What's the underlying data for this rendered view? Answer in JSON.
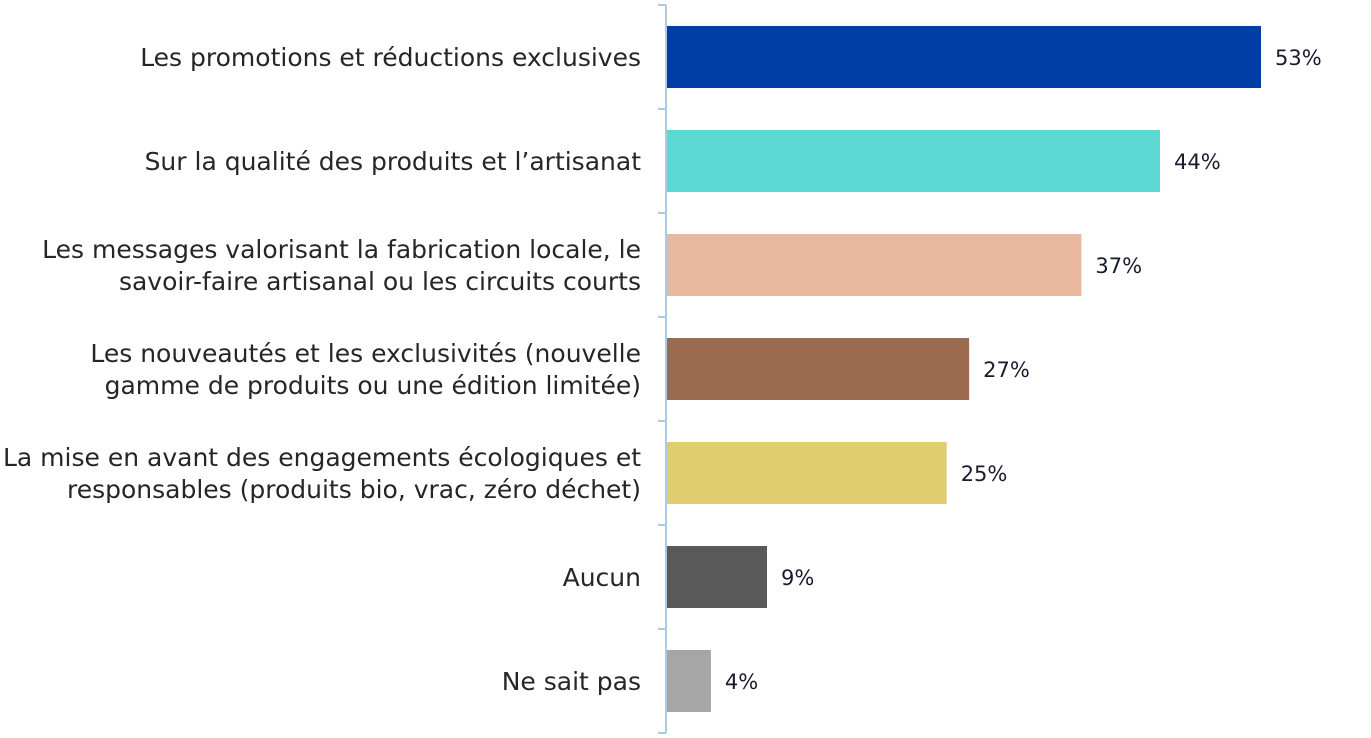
{
  "chart_data": {
    "type": "bar",
    "orientation": "horizontal",
    "categories": [
      [
        "Les promotions et réductions exclusives"
      ],
      [
        "Sur la qualité des produits et l’artisanat"
      ],
      [
        "Les messages valorisant la fabrication locale, le",
        "savoir-faire artisanal ou les circuits courts"
      ],
      [
        "Les nouveautés et les exclusivités (nouvelle",
        "gamme de produits ou une édition limitée)"
      ],
      [
        "La mise en avant des engagements écologiques et",
        "responsables (produits bio, vrac, zéro déchet)"
      ],
      [
        "Aucun"
      ],
      [
        "Ne sait pas"
      ]
    ],
    "values": [
      53,
      44,
      37,
      27,
      25,
      9,
      4
    ],
    "value_labels": [
      "53%",
      "44%",
      "37%",
      "27%",
      "25%",
      "9%",
      "4%"
    ],
    "colors": [
      "#003da5",
      "#5dd8d3",
      "#eab89e",
      "#9c6a4f",
      "#e0cd6f",
      "#5a5959",
      "#a6a6a6"
    ],
    "axis_color": "#a9cbe6",
    "xlim": [
      0,
      60
    ],
    "grid": false,
    "legend": "none",
    "title": "",
    "xlabel": "",
    "ylabel": ""
  }
}
